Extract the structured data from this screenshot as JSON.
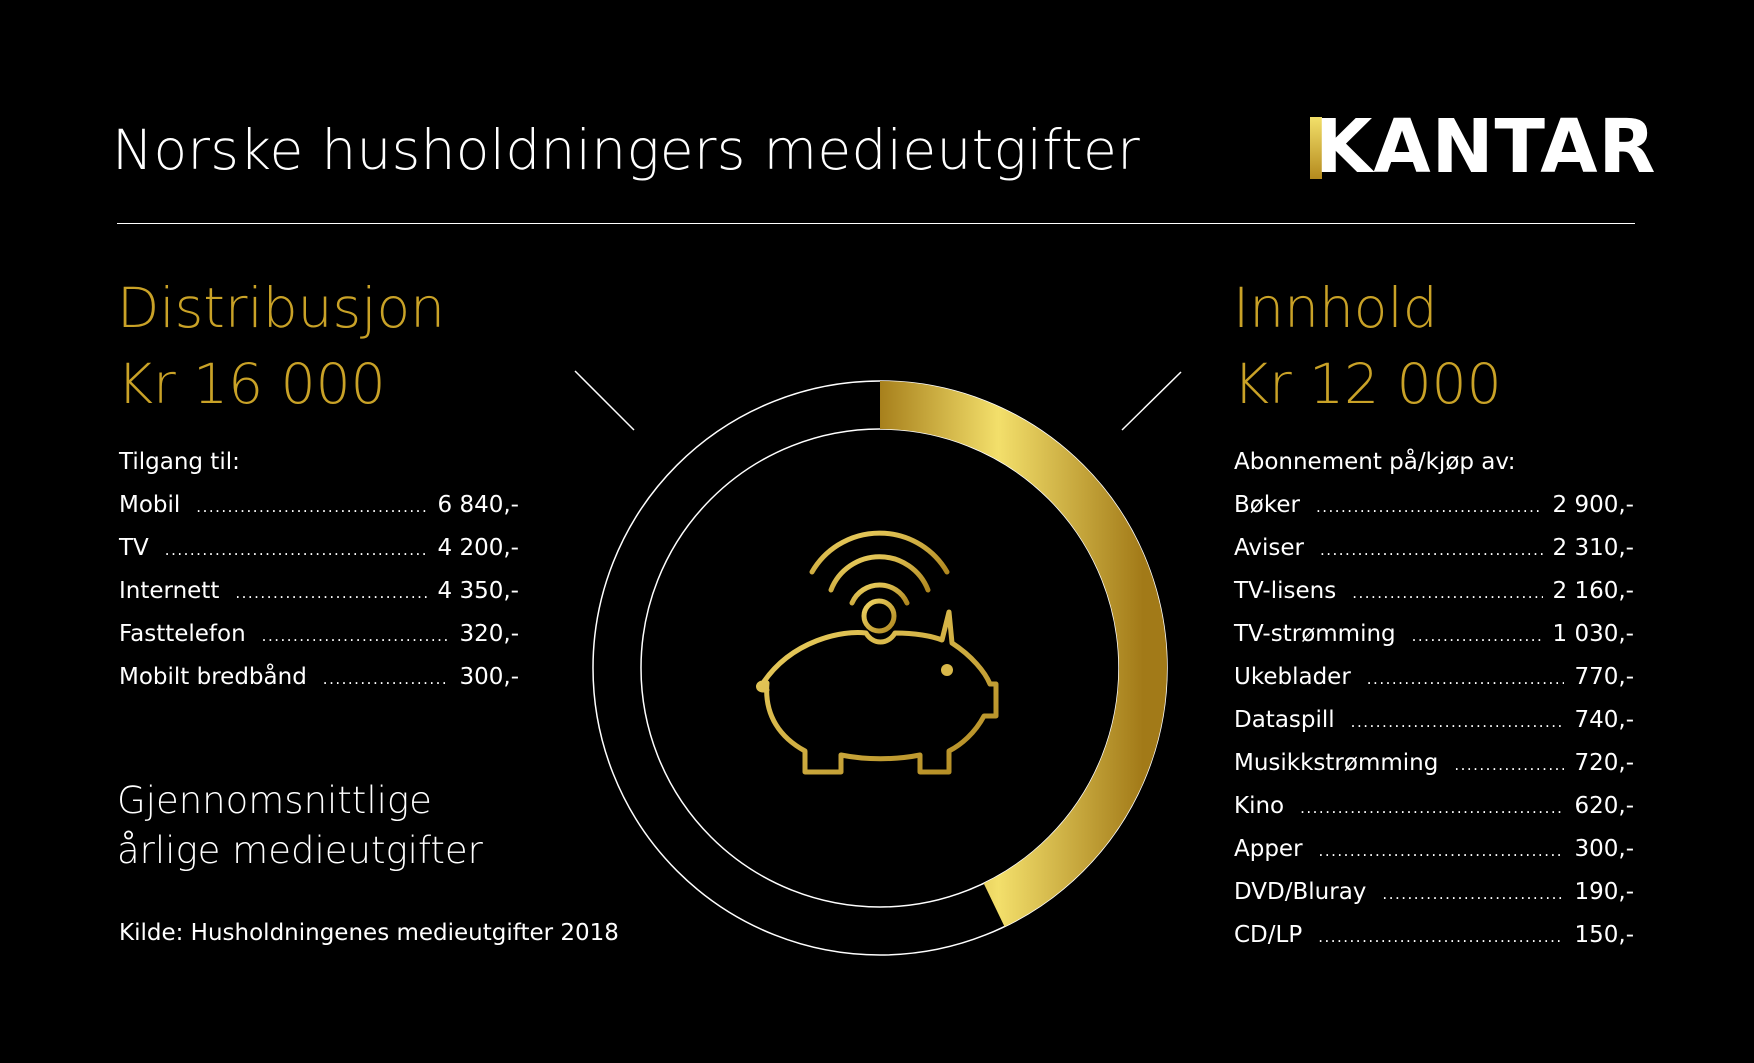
{
  "title": "Norske husholdningers medieutgifter",
  "logo": {
    "text": "KANTAR"
  },
  "chart_data": {
    "type": "pie",
    "title": "Gjennomsnittlige årlige medieutgifter",
    "categories": [
      "Innhold",
      "Distribusjon"
    ],
    "values": [
      12000,
      16000
    ],
    "colors": [
      "#c9a227",
      "#000000"
    ]
  },
  "distribution": {
    "heading": "Distribusjon",
    "amount": "Kr 16 000",
    "list_title": "Tilgang til:",
    "items": [
      {
        "label": "Mobil",
        "value": "6 840,-"
      },
      {
        "label": "TV",
        "value": "4 200,-"
      },
      {
        "label": "Internett",
        "value": "4 350,-"
      },
      {
        "label": "Fasttelefon",
        "value": "320,-"
      },
      {
        "label": "Mobilt bredbånd",
        "value": "300,-"
      }
    ]
  },
  "content": {
    "heading": "Innhold",
    "amount": "Kr 12 000",
    "list_title": "Abonnement på/kjøp av:",
    "items": [
      {
        "label": "Bøker",
        "value": "2 900,-"
      },
      {
        "label": "Aviser",
        "value": "2 310,-"
      },
      {
        "label": "TV-lisens",
        "value": "2 160,-"
      },
      {
        "label": "TV-strømming",
        "value": "1 030,-"
      },
      {
        "label": "Ukeblader",
        "value": "770,-"
      },
      {
        "label": "Dataspill",
        "value": "740,-"
      },
      {
        "label": "Musikkstrømming",
        "value": "720,-"
      },
      {
        "label": "Kino",
        "value": "620,-"
      },
      {
        "label": "Apper",
        "value": "300,-"
      },
      {
        "label": "DVD/Bluray",
        "value": "190,-"
      },
      {
        "label": "CD/LP",
        "value": "150,-"
      }
    ]
  },
  "subtitle": {
    "line1": "Gjennomsnittlige",
    "line2": "årlige medieutgifter"
  },
  "source": "Kilde: Husholdningenes medieutgifter 2018",
  "icon": {
    "name": "piggy-bank-wifi-icon"
  }
}
